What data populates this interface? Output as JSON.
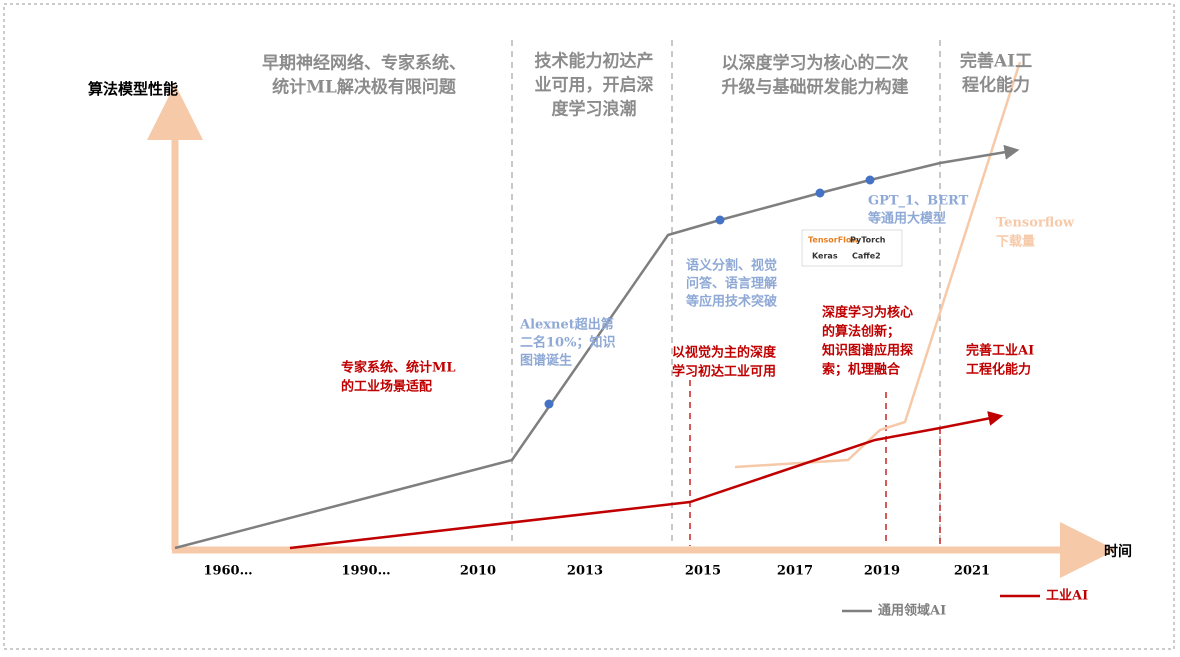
{
  "y_axis_label": "算法模型性能",
  "x_axis_label": "时间",
  "x_labels": [
    "1960…",
    "1990…",
    "2010",
    "2013",
    "2015",
    "2017",
    "2019",
    "2021"
  ],
  "phases": [
    {
      "lines": [
        "早期神经网络、专家系统、",
        "统计ML解决极有限问题"
      ]
    },
    {
      "lines": [
        "技术能力初达产",
        "业可用，开启深",
        "度学习浪潮"
      ]
    },
    {
      "lines": [
        "以深度学习为核心的二次",
        "升级与基础研发能力构建"
      ]
    },
    {
      "lines": [
        "完善AI工",
        "程化能力"
      ]
    }
  ],
  "general_notes": [
    {
      "lines": [
        "Alexnet超出第",
        "二名10%；知识",
        "图谱诞生"
      ]
    },
    {
      "lines": [
        "语义分割、视觉",
        "问答、语言理解",
        "等应用技术突破"
      ]
    },
    {
      "lines": [
        "GPT_1、BERT",
        "等通用大模型"
      ]
    }
  ],
  "tensorflow_note": {
    "lines": [
      "Tensorflow",
      "下载量"
    ]
  },
  "industrial_notes": [
    {
      "lines": [
        "专家系统、统计ML",
        "的工业场景适配"
      ]
    },
    {
      "lines": [
        "以视觉为主的深度",
        "学习初达工业可用"
      ]
    },
    {
      "lines": [
        "深度学习为核心",
        "的算法创新；",
        "知识图谱应用探",
        "索；机理融合"
      ]
    },
    {
      "lines": [
        "完善工业AI",
        "工程化能力"
      ]
    }
  ],
  "logos": [
    "TensorFlow",
    "PyTorch",
    "Keras",
    "Caffe2"
  ],
  "legend": [
    "通用领域AI",
    "工业AI"
  ]
}
